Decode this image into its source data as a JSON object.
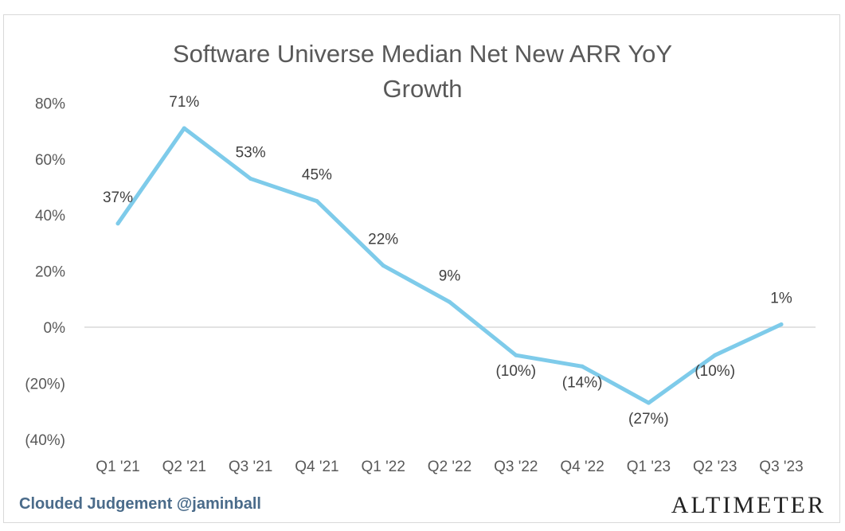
{
  "chart_data": {
    "type": "line",
    "title_lines": [
      "Software Universe Median Net New ARR YoY",
      "Growth"
    ],
    "categories": [
      "Q1 '21",
      "Q2 '21",
      "Q3 '21",
      "Q4 '21",
      "Q1 '22",
      "Q2 '22",
      "Q3 '22",
      "Q4 '22",
      "Q1 '23",
      "Q2 '23",
      "Q3 '23"
    ],
    "values": [
      37,
      71,
      53,
      45,
      22,
      9,
      -10,
      -14,
      -27,
      -10,
      1
    ],
    "data_labels": [
      "37%",
      "71%",
      "53%",
      "45%",
      "22%",
      "9%",
      "(10%)",
      "(14%)",
      "(27%)",
      "(10%)",
      "1%"
    ],
    "y_ticks": [
      80,
      60,
      40,
      20,
      0,
      -20,
      -40
    ],
    "y_tick_labels": [
      "80%",
      "60%",
      "40%",
      "20%",
      "0%",
      "(20%)",
      "(40%)"
    ],
    "ylim": [
      -40,
      80
    ],
    "line_color": "#7ecbea",
    "grid": false,
    "legend": "none"
  },
  "watermarks": {
    "left": "Clouded Judgement @jaminball",
    "right": "ALTIMETER"
  }
}
